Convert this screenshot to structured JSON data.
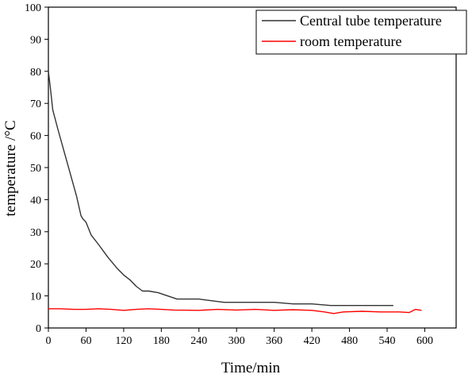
{
  "chart_data": {
    "type": "line",
    "title": "",
    "xlabel": "Time/min",
    "ylabel": "temperature /°C",
    "xlim": [
      0,
      650
    ],
    "ylim": [
      0,
      100
    ],
    "x_ticks": [
      0,
      60,
      120,
      180,
      240,
      300,
      360,
      420,
      480,
      540,
      600
    ],
    "y_ticks": [
      0,
      10,
      20,
      30,
      40,
      50,
      60,
      70,
      80,
      90,
      100
    ],
    "grid": false,
    "legend_position": "top-right",
    "series": [
      {
        "name": "Central tube temperature",
        "color": "#333333",
        "points": [
          [
            0,
            80
          ],
          [
            3,
            75
          ],
          [
            7,
            68
          ],
          [
            15,
            62
          ],
          [
            25,
            55
          ],
          [
            35,
            48
          ],
          [
            45,
            41
          ],
          [
            52,
            35
          ],
          [
            55,
            34
          ],
          [
            60,
            33
          ],
          [
            68,
            29
          ],
          [
            80,
            26
          ],
          [
            95,
            22
          ],
          [
            110,
            18.5
          ],
          [
            120,
            16.5
          ],
          [
            130,
            15
          ],
          [
            140,
            13
          ],
          [
            150,
            11.5
          ],
          [
            160,
            11.5
          ],
          [
            175,
            11
          ],
          [
            190,
            10
          ],
          [
            205,
            9
          ],
          [
            220,
            9
          ],
          [
            240,
            9
          ],
          [
            260,
            8.5
          ],
          [
            280,
            8
          ],
          [
            300,
            8
          ],
          [
            330,
            8
          ],
          [
            360,
            8
          ],
          [
            390,
            7.5
          ],
          [
            420,
            7.5
          ],
          [
            450,
            7
          ],
          [
            480,
            7
          ],
          [
            520,
            7
          ],
          [
            550,
            7
          ]
        ]
      },
      {
        "name": "room temperature",
        "color": "#ff0000",
        "points": [
          [
            0,
            6
          ],
          [
            20,
            6
          ],
          [
            40,
            5.8
          ],
          [
            60,
            5.8
          ],
          [
            80,
            6
          ],
          [
            100,
            5.8
          ],
          [
            120,
            5.5
          ],
          [
            140,
            5.8
          ],
          [
            160,
            6
          ],
          [
            180,
            5.8
          ],
          [
            200,
            5.6
          ],
          [
            240,
            5.5
          ],
          [
            270,
            5.8
          ],
          [
            300,
            5.6
          ],
          [
            330,
            5.8
          ],
          [
            360,
            5.5
          ],
          [
            390,
            5.7
          ],
          [
            420,
            5.5
          ],
          [
            440,
            5
          ],
          [
            455,
            4.5
          ],
          [
            470,
            5
          ],
          [
            500,
            5.2
          ],
          [
            530,
            5
          ],
          [
            560,
            5
          ],
          [
            575,
            4.8
          ],
          [
            585,
            5.8
          ],
          [
            595,
            5.5
          ]
        ]
      }
    ]
  }
}
